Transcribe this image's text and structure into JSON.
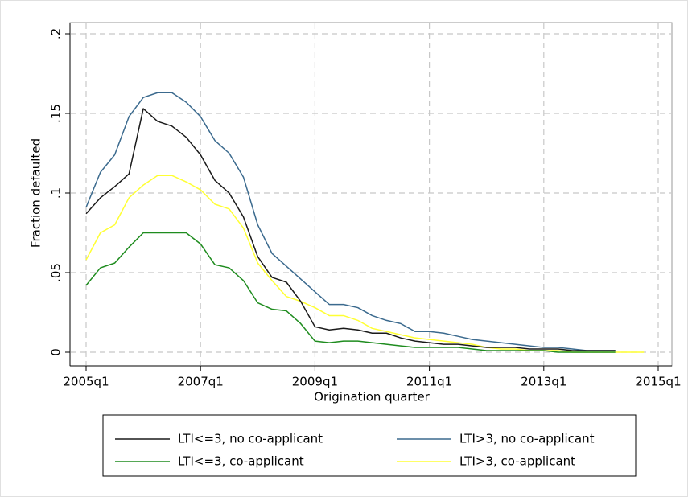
{
  "chart_data": {
    "type": "line",
    "x_label": "Origination quarter",
    "y_label": "Fraction defaulted",
    "x": [
      "2005q1",
      "2005q2",
      "2005q3",
      "2005q4",
      "2006q1",
      "2006q2",
      "2006q3",
      "2006q4",
      "2007q1",
      "2007q2",
      "2007q3",
      "2007q4",
      "2008q1",
      "2008q2",
      "2008q3",
      "2008q4",
      "2009q1",
      "2009q2",
      "2009q3",
      "2009q4",
      "2010q1",
      "2010q2",
      "2010q3",
      "2010q4",
      "2011q1",
      "2011q2",
      "2011q3",
      "2011q4",
      "2012q1",
      "2012q2",
      "2012q3",
      "2012q4",
      "2013q1",
      "2013q2",
      "2013q3",
      "2013q4",
      "2014q1",
      "2014q2",
      "2014q3",
      "2014q4"
    ],
    "xlim": [
      "2005q1",
      "2015q1"
    ],
    "xticks": [
      "2005q1",
      "2007q1",
      "2009q1",
      "2011q1",
      "2013q1",
      "2015q1"
    ],
    "ylim": [
      0,
      0.2
    ],
    "yticks": [
      0,
      {
        "value": 0.05,
        "label": ".05"
      },
      {
        "value": 0.1,
        "label": ".1"
      },
      {
        "value": 0.15,
        "label": ".15"
      },
      {
        "value": 0.2,
        "label": ".2"
      }
    ],
    "grid": true,
    "series": [
      {
        "name": "LTI<=3, no co-applicant",
        "color": "#1a1a1a",
        "values": [
          0.087,
          0.097,
          0.104,
          0.112,
          0.153,
          0.145,
          0.142,
          0.135,
          0.124,
          0.108,
          0.1,
          0.085,
          0.06,
          0.047,
          0.044,
          0.032,
          0.016,
          0.014,
          0.015,
          0.014,
          0.012,
          0.012,
          0.009,
          0.007,
          0.006,
          0.005,
          0.005,
          0.004,
          0.003,
          0.003,
          0.003,
          0.002,
          0.002,
          0.002,
          0.001,
          0.001,
          0.001,
          0.001,
          null,
          null
        ]
      },
      {
        "name": "LTI<=3, co-applicant",
        "color": "#1f8c1f",
        "values": [
          0.042,
          0.053,
          0.056,
          0.066,
          0.075,
          0.075,
          0.075,
          0.075,
          0.068,
          0.055,
          0.053,
          0.045,
          0.031,
          0.027,
          0.026,
          0.018,
          0.007,
          0.006,
          0.007,
          0.007,
          0.006,
          0.005,
          0.004,
          0.003,
          0.003,
          0.003,
          0.003,
          0.002,
          0.001,
          0.001,
          0.001,
          0.001,
          0.001,
          0.0,
          0.0,
          0.0,
          0.0,
          0.0,
          null,
          null
        ]
      },
      {
        "name": "LTI>3, no co-applicant",
        "color": "#3b6a8e",
        "values": [
          0.091,
          0.113,
          0.124,
          0.148,
          0.16,
          0.163,
          0.163,
          0.157,
          0.148,
          0.133,
          0.125,
          0.11,
          0.08,
          0.062,
          0.054,
          0.046,
          0.038,
          0.03,
          0.03,
          0.028,
          0.023,
          0.02,
          0.018,
          0.013,
          0.013,
          0.012,
          0.01,
          0.008,
          0.007,
          0.006,
          0.005,
          0.004,
          0.003,
          0.003,
          0.002,
          0.001,
          0.001,
          0.001,
          null,
          null
        ]
      },
      {
        "name": "LTI>3, co-applicant",
        "color": "#ffff33",
        "values": [
          0.058,
          0.075,
          0.08,
          0.097,
          0.105,
          0.111,
          0.111,
          0.107,
          0.102,
          0.093,
          0.09,
          0.078,
          0.056,
          0.045,
          0.035,
          0.032,
          0.028,
          0.023,
          0.023,
          0.02,
          0.015,
          0.013,
          0.011,
          0.009,
          0.008,
          0.007,
          0.006,
          0.005,
          0.003,
          0.002,
          0.002,
          0.001,
          0.001,
          0.001,
          0.0,
          0.0,
          0.0,
          0.0,
          0.0,
          0.0
        ]
      }
    ]
  }
}
